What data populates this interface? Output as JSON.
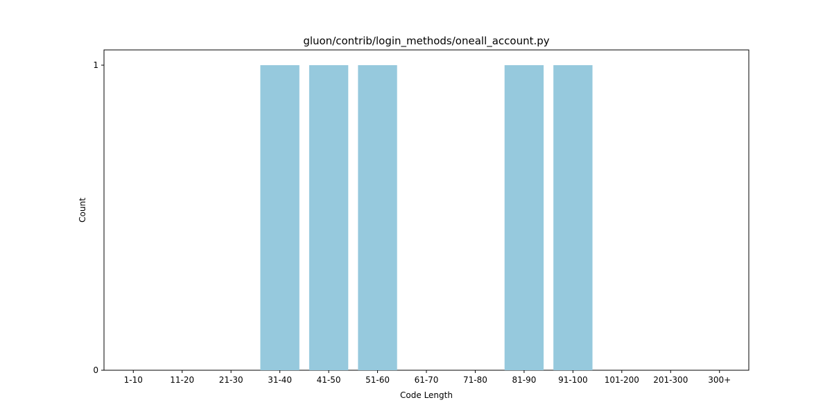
{
  "chart_data": {
    "type": "bar",
    "title": "gluon/contrib/login_methods/oneall_account.py",
    "xlabel": "Code Length",
    "ylabel": "Count",
    "categories": [
      "1-10",
      "11-20",
      "21-30",
      "31-40",
      "41-50",
      "51-60",
      "61-70",
      "71-80",
      "81-90",
      "91-100",
      "101-200",
      "201-300",
      "300+"
    ],
    "values": [
      0,
      0,
      0,
      1,
      1,
      1,
      0,
      0,
      1,
      1,
      0,
      0,
      0
    ],
    "ylim": [
      0,
      1.05
    ],
    "yticks": [
      0,
      1
    ],
    "grid": false,
    "legend": "none",
    "bar_color": "#96c9dd"
  }
}
